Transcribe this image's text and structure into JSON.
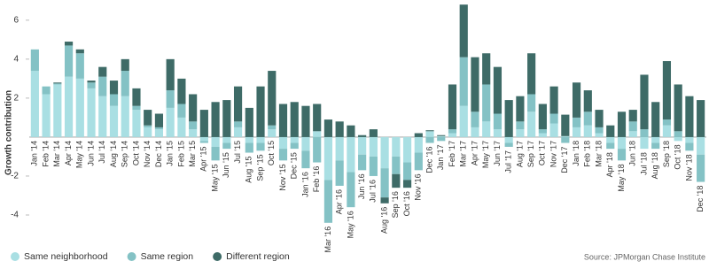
{
  "chart_data": {
    "type": "stacked-bar",
    "y_label": "Growth contribution",
    "source": "Source: JPMorgan Chase Institute",
    "categories": [
      "Jan '14",
      "Feb '14",
      "Mar '14",
      "Apr '14",
      "May '14",
      "Jun '14",
      "Jul '14",
      "Aug '14",
      "Sep '14",
      "Oct '14",
      "Nov '14",
      "Dec '14",
      "Jan '15",
      "Feb '15",
      "Mar '15",
      "Apr '15",
      "May '15",
      "Jun '15",
      "Jul '15",
      "Aug '15",
      "Sep '15",
      "Oct '15",
      "Nov '15",
      "Dec '15",
      "Jan '16",
      "Feb '16",
      "Mar '16",
      "Apr '16",
      "May '16",
      "Jun '16",
      "Jul '16",
      "Aug '16",
      "Sep '16",
      "Oct '16",
      "Nov '16",
      "Dec '16",
      "Jan '17",
      "Feb '17",
      "Mar '17",
      "Apr '17",
      "May '17",
      "Jun '17",
      "Jul '17",
      "Aug '17",
      "Sep '17",
      "Oct '17",
      "Nov '17",
      "Dec '17",
      "Jan '18",
      "Feb '18",
      "Mar '18",
      "Apr '18",
      "May '18",
      "Jun '18",
      "Jul '18",
      "Aug '18",
      "Sep '18",
      "Oct '18",
      "Nov '18",
      "Dec '18"
    ],
    "series": [
      {
        "name": "Same neighborhood",
        "color": "#a9dfe3",
        "values": [
          3.4,
          2.2,
          2.7,
          3.1,
          3.0,
          2.5,
          2.1,
          1.6,
          2.1,
          1.4,
          0.5,
          0.4,
          1.5,
          1.0,
          0.4,
          -0.2,
          -0.5,
          -0.3,
          0.5,
          -0.3,
          -0.3,
          0.4,
          -0.6,
          -0.3,
          -0.7,
          0.3,
          -2.2,
          -1.2,
          -1.8,
          -0.9,
          -1.0,
          -1.6,
          -1.0,
          -1.3,
          -0.8,
          0.3,
          0.05,
          0.2,
          1.6,
          0.5,
          0.8,
          0.4,
          -0.3,
          0.4,
          1.3,
          0.2,
          0.7,
          0.05,
          0.5,
          0.6,
          0.2,
          -0.3,
          -0.6,
          0.3,
          -0.6,
          -0.3,
          0.6,
          -0.2,
          -0.3,
          -0.9
        ]
      },
      {
        "name": "Same region",
        "color": "#84c2c5",
        "values": [
          1.1,
          0.4,
          0.05,
          1.6,
          1.3,
          0.3,
          1.0,
          0.6,
          1.3,
          0.2,
          0.1,
          0.1,
          0.9,
          0.7,
          0.4,
          -0.1,
          -0.7,
          -0.3,
          0.3,
          -0.5,
          -0.4,
          0.2,
          -0.6,
          -0.3,
          -0.9,
          -1.3,
          -2.2,
          -1.3,
          -1.8,
          -0.8,
          -1.0,
          -1.5,
          -0.9,
          -0.9,
          -0.9,
          -0.3,
          -0.2,
          0.2,
          2.5,
          0.8,
          1.9,
          0.8,
          -0.2,
          0.4,
          0.9,
          0.2,
          0.5,
          -0.3,
          0.5,
          0.7,
          0.3,
          -0.3,
          -0.6,
          0.5,
          0.4,
          -0.3,
          0.3,
          0.3,
          -0.4,
          -1.4
        ]
      },
      {
        "name": "Different region",
        "color": "#3e6b67",
        "values": [
          0,
          0,
          0.05,
          0.2,
          0.2,
          0.1,
          0.5,
          0.7,
          0.6,
          0.9,
          0.8,
          0.7,
          1.6,
          1.3,
          1.4,
          1.4,
          1.8,
          1.9,
          1.8,
          1.5,
          2.6,
          2.8,
          1.7,
          1.8,
          1.6,
          1.4,
          0.9,
          0.8,
          0.6,
          0.1,
          0.4,
          -0.3,
          -0.7,
          -0.4,
          0.2,
          0.05,
          0.05,
          2.3,
          2.7,
          2.8,
          1.6,
          2.4,
          1.9,
          1.3,
          2.1,
          1.3,
          1.4,
          1.1,
          1.8,
          1.1,
          0.9,
          0.6,
          1.3,
          0.6,
          2.8,
          1.8,
          3.0,
          2.4,
          2.1,
          1.9
        ]
      }
    ],
    "ylim": [
      -5,
      6.9
    ],
    "yticks": [
      -4,
      -2,
      2,
      4,
      6
    ],
    "grid": false
  }
}
